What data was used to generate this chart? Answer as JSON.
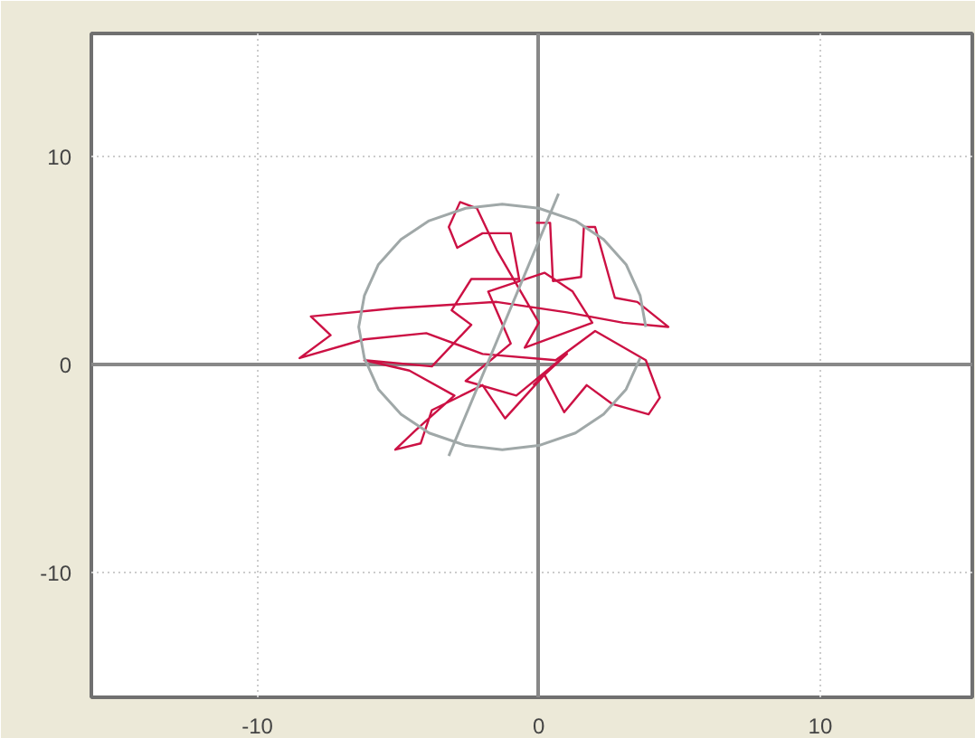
{
  "chart_data": {
    "type": "line",
    "xlim": [
      -15.9,
      15.4
    ],
    "ylim": [
      -16,
      15.9
    ],
    "xticks": [
      -10,
      0,
      10
    ],
    "yticks": [
      -10,
      0,
      10
    ],
    "grid": true,
    "marker": "none",
    "line_style": "solid",
    "series": [
      {
        "color": "#cc1144",
        "x": [
          -0.1,
          0.4,
          0.5,
          1.5,
          1.6,
          2.0,
          2.7,
          3.5,
          4.6,
          3.0,
          1.0,
          -1.5,
          -5.1,
          -8.1,
          -7.4,
          -8.5,
          -6.2,
          -4.0,
          -2.0,
          0.6,
          2.0,
          3.8,
          4.3,
          3.9,
          2.6,
          1.7,
          0.9,
          0.2,
          -1.2,
          -2.0,
          -3.8,
          -4.2,
          -5.1,
          -4.4,
          -3.0,
          -4.6,
          -6.2,
          -3.8,
          -2.4,
          -3.1,
          -2.4,
          -0.7,
          -1.0,
          -2.0,
          -2.9,
          -3.2,
          -2.8,
          -2.2,
          -1.5,
          0,
          -0.5,
          1.9,
          1.2,
          0.2,
          -1.8,
          -1.0,
          -2.6,
          -0.8,
          1.0,
          -0.2
        ],
        "values": [
          6.8,
          6.8,
          4.0,
          4.2,
          6.6,
          6.6,
          3.2,
          3.0,
          1.8,
          2.0,
          2.5,
          3.0,
          2.7,
          2.3,
          1.4,
          0.3,
          1.2,
          1.5,
          0.5,
          0.2,
          1.6,
          0.2,
          -1.6,
          -2.4,
          -1.9,
          -1.0,
          -2.3,
          -0.5,
          -2.6,
          -1.0,
          -2.2,
          -3.8,
          -4.1,
          -3.2,
          -1.5,
          -0.3,
          0.2,
          -0.1,
          1.9,
          2.6,
          4.1,
          4.1,
          6.3,
          6.3,
          5.6,
          6.6,
          7.8,
          7.5,
          5.5,
          2.0,
          0.8,
          2.0,
          3.5,
          4.4,
          3.5,
          1.0,
          -0.8,
          -1.5,
          0.5,
          -1.0
        ]
      },
      {
        "color": "#a0a8a8",
        "x": [
          3.8,
          3.6,
          3.1,
          2.3,
          1.3,
          0.0,
          -1.3,
          -2.6,
          -3.9,
          -4.9,
          -5.7,
          -6.2,
          -6.4,
          -6.2,
          -5.7,
          -4.9,
          -3.9,
          -2.6,
          -1.3,
          0.0,
          1.3,
          2.3,
          3.1,
          3.6
        ],
        "values": [
          1.8,
          3.3,
          4.8,
          6.0,
          6.9,
          7.5,
          7.7,
          7.5,
          6.9,
          6.0,
          4.8,
          3.3,
          1.8,
          0.3,
          -1.2,
          -2.4,
          -3.3,
          -3.9,
          -4.1,
          -3.9,
          -3.3,
          -2.4,
          -1.2,
          0.3
        ]
      },
      {
        "color": "#a0a8a8",
        "x": [
          -3.2,
          0.7
        ],
        "values": [
          -4.4,
          8.2
        ]
      }
    ]
  }
}
